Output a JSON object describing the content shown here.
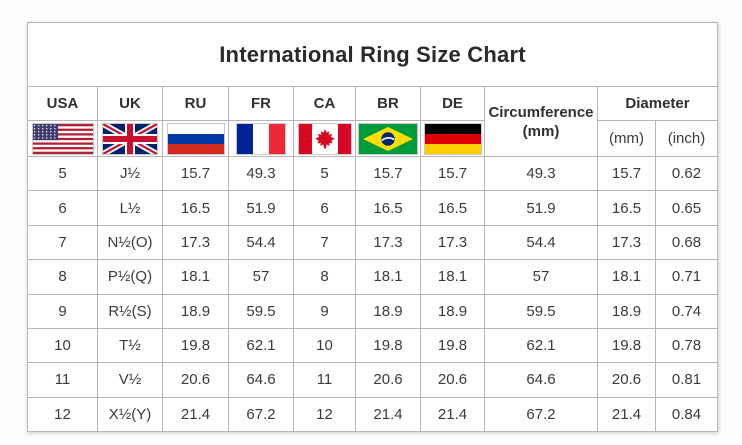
{
  "title": "International Ring Size Chart",
  "header": {
    "country_columns": [
      {
        "label": "USA",
        "flag": "flag-usa-icon"
      },
      {
        "label": "UK",
        "flag": "flag-uk-icon"
      },
      {
        "label": "RU",
        "flag": "flag-russia-icon"
      },
      {
        "label": "FR",
        "flag": "flag-france-icon"
      },
      {
        "label": "CA",
        "flag": "flag-canada-icon"
      },
      {
        "label": "BR",
        "flag": "flag-brazil-icon"
      },
      {
        "label": "DE",
        "flag": "flag-germany-icon"
      }
    ],
    "circumference": {
      "line1": "Circumference",
      "line2": "(mm)"
    },
    "diameter": {
      "label": "Diameter",
      "mm_label": "(mm)",
      "inch_label": "(inch)"
    }
  },
  "chart_data": {
    "type": "table",
    "title": "International Ring Size Chart",
    "columns": [
      "USA",
      "UK",
      "RU",
      "FR",
      "CA",
      "BR",
      "DE",
      "Circumference (mm)",
      "Diameter (mm)",
      "Diameter (inch)"
    ],
    "rows": [
      [
        "5",
        "J½",
        "15.7",
        "49.3",
        "5",
        "15.7",
        "15.7",
        "49.3",
        "15.7",
        "0.62"
      ],
      [
        "6",
        "L½",
        "16.5",
        "51.9",
        "6",
        "16.5",
        "16.5",
        "51.9",
        "16.5",
        "0.65"
      ],
      [
        "7",
        "N½(O)",
        "17.3",
        "54.4",
        "7",
        "17.3",
        "17.3",
        "54.4",
        "17.3",
        "0.68"
      ],
      [
        "8",
        "P½(Q)",
        "18.1",
        "57",
        "8",
        "18.1",
        "18.1",
        "57",
        "18.1",
        "0.71"
      ],
      [
        "9",
        "R½(S)",
        "18.9",
        "59.5",
        "9",
        "18.9",
        "18.9",
        "59.5",
        "18.9",
        "0.74"
      ],
      [
        "10",
        "T½",
        "19.8",
        "62.1",
        "10",
        "19.8",
        "19.8",
        "62.1",
        "19.8",
        "0.78"
      ],
      [
        "11",
        "V½",
        "20.6",
        "64.6",
        "11",
        "20.6",
        "20.6",
        "64.6",
        "20.6",
        "0.81"
      ],
      [
        "12",
        "X½(Y)",
        "21.4",
        "67.2",
        "12",
        "21.4",
        "21.4",
        "67.2",
        "21.4",
        "0.84"
      ]
    ]
  },
  "colors": {
    "background": "#fcfcfc",
    "table_background": "#ffffff",
    "outer_border": "#8f8f8f",
    "grid_line": "#b5b5b5",
    "text": "#3b3b3b",
    "title_text": "#2a2a2a"
  }
}
